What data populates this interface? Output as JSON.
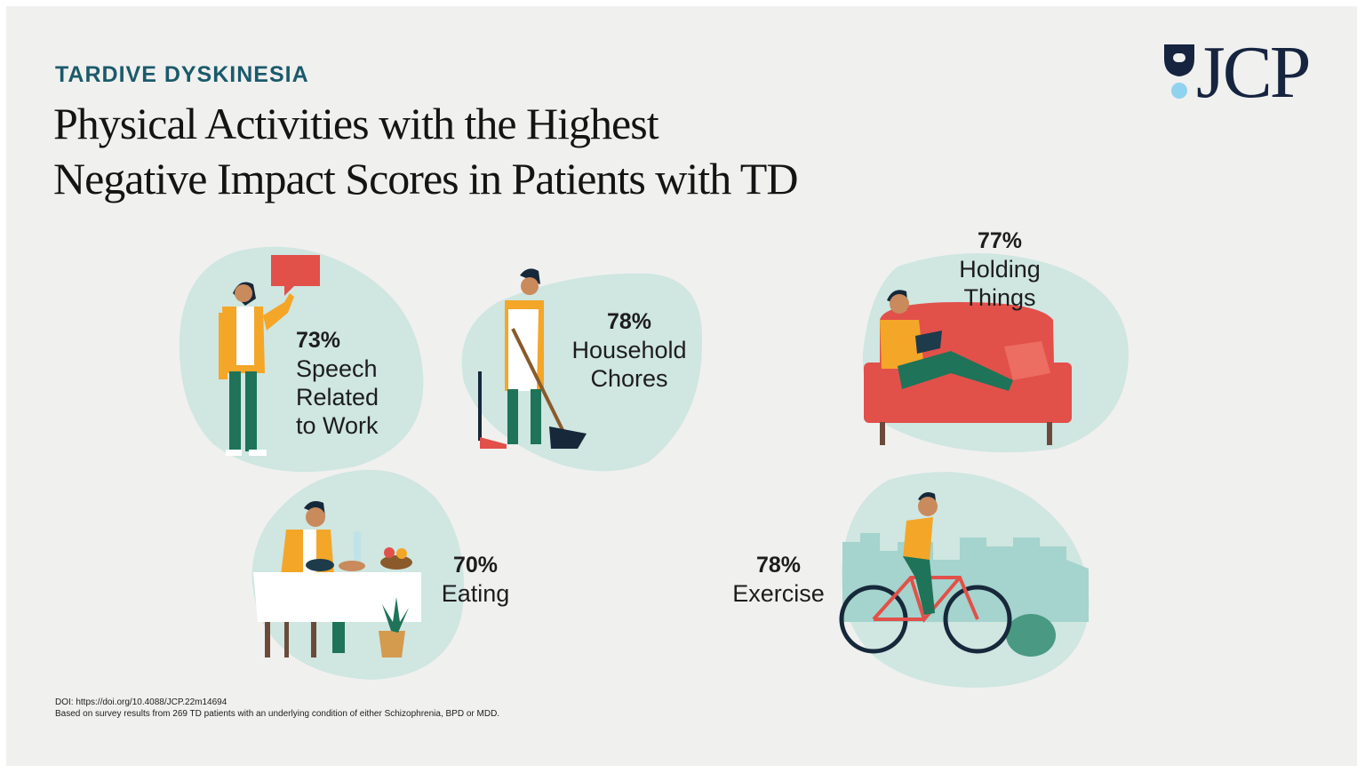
{
  "header": {
    "kicker": "TARDIVE DYSKINESIA",
    "title_line1": "Physical Activities with the Highest",
    "title_line2": "Negative Impact Scores in Patients with TD"
  },
  "logo": {
    "text": "JCP"
  },
  "activities": [
    {
      "percent": "73%",
      "label": "Speech\nRelated\nto Work",
      "icon": "person-speaking-icon"
    },
    {
      "percent": "78%",
      "label": "Household\nChores",
      "icon": "person-sweeping-icon"
    },
    {
      "percent": "77%",
      "label": "Holding\nThings",
      "icon": "person-reading-on-sofa-icon"
    },
    {
      "percent": "70%",
      "label": "Eating",
      "icon": "person-eating-icon"
    },
    {
      "percent": "78%",
      "label": "Exercise",
      "icon": "person-cycling-icon"
    }
  ],
  "footer": {
    "doi": "DOI: https://doi.org/10.4088/JCP.22m14694",
    "note": "Based on survey results from 269 TD patients with an underlying condition of either Schizophrenia, BPD or MDD."
  },
  "colors": {
    "background": "#f0f0ef",
    "kicker": "#1b5a6a",
    "blob": "#cfe6e1",
    "accent_red": "#e2504a",
    "accent_yellow": "#f4a628",
    "pants_green": "#1f7358",
    "logo_navy": "#16243f",
    "logo_blue": "#8fd3ef"
  }
}
